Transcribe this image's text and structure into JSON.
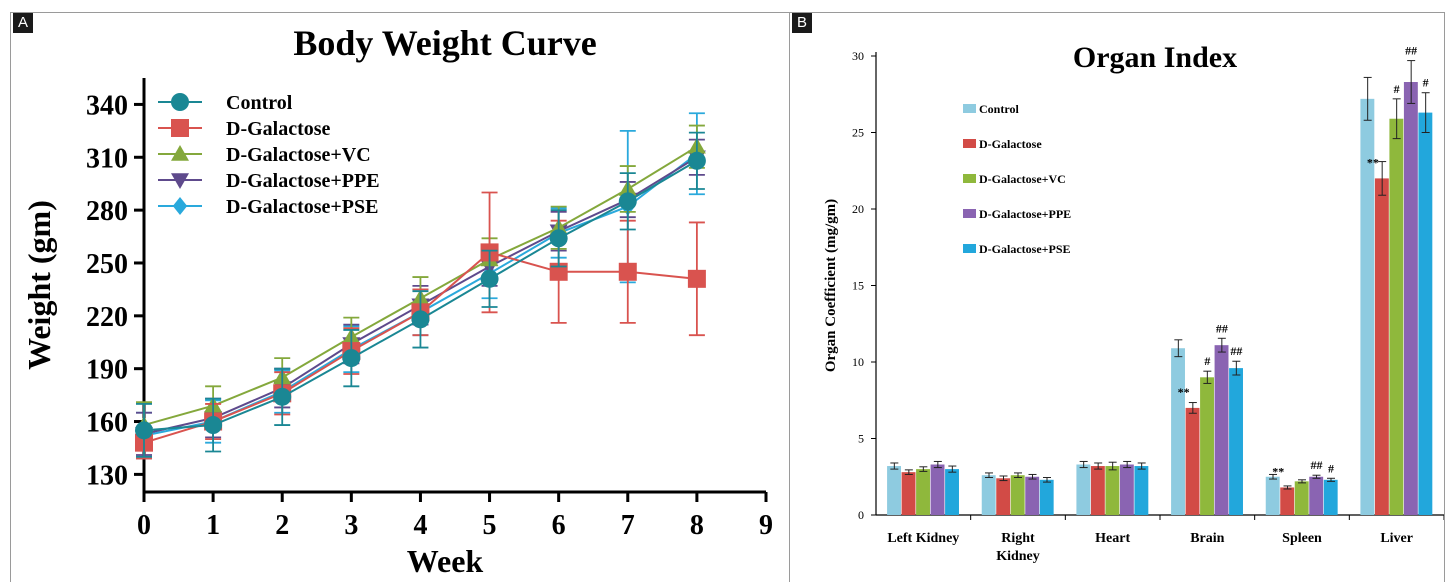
{
  "panel_a": {
    "tag": "A",
    "chart_data": {
      "type": "line",
      "title": "Body Weight Curve",
      "xlabel": "Week",
      "ylabel": "Weight (gm)",
      "x": [
        0,
        1,
        2,
        3,
        4,
        5,
        6,
        7,
        8
      ],
      "xticks": [
        "0",
        "1",
        "2",
        "3",
        "4",
        "5",
        "6",
        "7",
        "8",
        "9"
      ],
      "yticks": [
        "130",
        "160",
        "190",
        "220",
        "250",
        "280",
        "310",
        "340"
      ],
      "xlim": [
        0,
        9
      ],
      "ylim": [
        120,
        355
      ],
      "legend_position": "top-left",
      "grid": false,
      "series": [
        {
          "name": "Control",
          "marker": "circle",
          "color": "#1a8794",
          "values": [
            155,
            158,
            174,
            196,
            218,
            241,
            264,
            285,
            308
          ],
          "errors": [
            15,
            15,
            16,
            16,
            16,
            16,
            16,
            16,
            16
          ]
        },
        {
          "name": "D-Galactose",
          "marker": "square",
          "color": "#d9534f",
          "values": [
            148,
            160,
            176,
            200,
            222,
            256,
            245,
            245,
            241
          ],
          "errors": [
            9,
            10,
            12,
            13,
            13,
            34,
            29,
            29,
            32
          ]
        },
        {
          "name": "D-Galactose+VC",
          "marker": "triangle-up",
          "color": "#84a83c",
          "values": [
            158,
            169,
            185,
            208,
            230,
            252,
            270,
            292,
            316
          ],
          "errors": [
            13,
            11,
            11,
            11,
            12,
            12,
            12,
            13,
            12
          ]
        },
        {
          "name": "D-Galactose+PPE",
          "marker": "triangle-down",
          "color": "#5e4a8c",
          "values": [
            153,
            162,
            179,
            204,
            226,
            248,
            268,
            286,
            310
          ],
          "errors": [
            12,
            11,
            11,
            11,
            11,
            11,
            11,
            10,
            10
          ]
        },
        {
          "name": "D-Galactose+PSE",
          "marker": "diamond",
          "color": "#2aa9dc",
          "values": [
            152,
            160,
            177,
            201,
            222,
            244,
            267,
            282,
            312
          ],
          "errors": [
            13,
            12,
            12,
            13,
            13,
            14,
            14,
            43,
            23
          ]
        }
      ]
    }
  },
  "panel_b": {
    "tag": "B",
    "chart_data": {
      "type": "bar",
      "title": "Organ Index",
      "xlabel": "",
      "ylabel": "Organ Coefficient (mg/gm)",
      "categories": [
        "Left Kidney",
        "Right Kidney",
        "Heart",
        "Brain",
        "Spleen",
        "Liver"
      ],
      "yticks": [
        "0",
        "5",
        "10",
        "15",
        "20",
        "25",
        "30"
      ],
      "ylim": [
        0,
        30
      ],
      "legend_position": "top-left",
      "grid": false,
      "series": [
        {
          "name": "Control",
          "color": "#8ecbe0",
          "values": [
            3.2,
            2.6,
            3.3,
            10.9,
            2.5,
            27.2
          ],
          "errors": [
            0.2,
            0.15,
            0.2,
            0.55,
            0.15,
            1.4
          ],
          "annotations": [
            "",
            "",
            "",
            "",
            "",
            ""
          ]
        },
        {
          "name": "D-Galactose",
          "color": "#d24b46",
          "values": [
            2.8,
            2.4,
            3.2,
            7.0,
            1.8,
            22.0
          ],
          "errors": [
            0.15,
            0.15,
            0.2,
            0.35,
            0.1,
            1.1
          ],
          "annotations": [
            "",
            "",
            "",
            "**",
            "**",
            "**"
          ]
        },
        {
          "name": "D-Galactose+VC",
          "color": "#8fb83c",
          "values": [
            3.0,
            2.6,
            3.2,
            9.0,
            2.2,
            25.9
          ],
          "errors": [
            0.15,
            0.15,
            0.25,
            0.4,
            0.1,
            1.3
          ],
          "annotations": [
            "",
            "",
            "",
            "#",
            "",
            "#"
          ]
        },
        {
          "name": "D-Galactose+PPE",
          "color": "#8a64b2",
          "values": [
            3.3,
            2.5,
            3.3,
            11.1,
            2.5,
            28.3
          ],
          "errors": [
            0.2,
            0.15,
            0.2,
            0.45,
            0.1,
            1.4
          ],
          "annotations": [
            "",
            "",
            "",
            "##",
            "##",
            "##"
          ]
        },
        {
          "name": "D-Galactose+PSE",
          "color": "#22a7dc",
          "values": [
            3.0,
            2.3,
            3.2,
            9.6,
            2.3,
            26.3
          ],
          "errors": [
            0.2,
            0.15,
            0.2,
            0.45,
            0.1,
            1.3
          ],
          "annotations": [
            "",
            "",
            "",
            "##",
            "#",
            "#"
          ]
        }
      ]
    }
  }
}
